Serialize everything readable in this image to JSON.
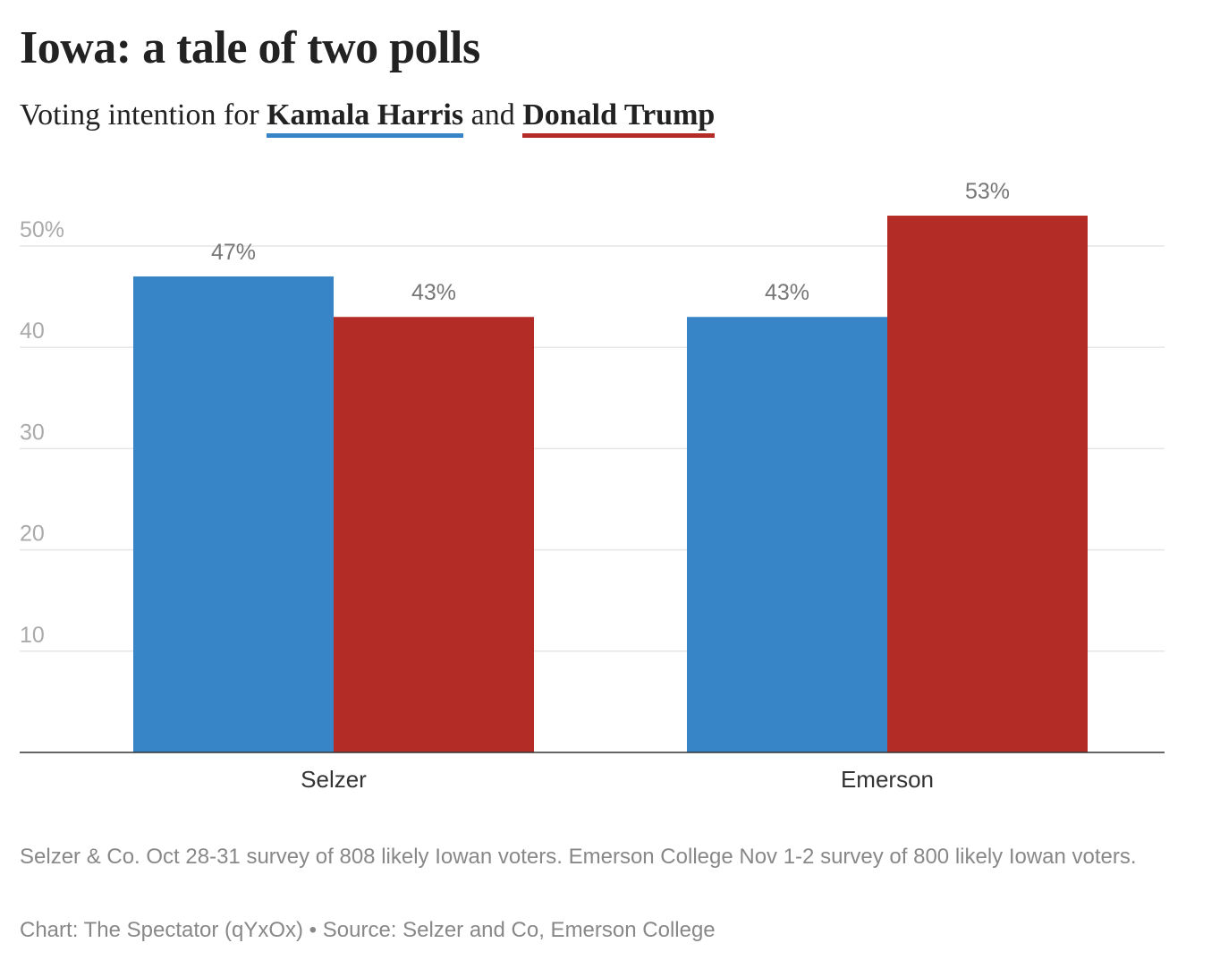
{
  "title": "Iowa: a tale of two polls",
  "subtitle": {
    "prefix": "Voting intention for",
    "series1": "Kamala Harris",
    "joiner": "and",
    "series2": "Donald Trump"
  },
  "chart_data": {
    "type": "bar",
    "title": "Iowa: a tale of two polls",
    "subtitle": "Voting intention for Kamala Harris and Donald Trump",
    "categories": [
      "Selzer",
      "Emerson"
    ],
    "series": [
      {
        "name": "Kamala Harris",
        "color": "#3784c7",
        "values": [
          47,
          43
        ],
        "labels": [
          "47%",
          "43%"
        ]
      },
      {
        "name": "Donald Trump",
        "color": "#b32d26",
        "values": [
          43,
          53
        ],
        "labels": [
          "43%",
          "53%"
        ]
      }
    ],
    "yticks": [
      10,
      20,
      30,
      40,
      50
    ],
    "ytick_labels": [
      "10",
      "20",
      "30",
      "40",
      "50%"
    ],
    "ylim": [
      0,
      55
    ],
    "xlabel": "",
    "ylabel": "",
    "grid": true,
    "legend": "subtitle"
  },
  "footnote": "Selzer & Co. Oct 28-31 survey of 808 likely Iowan voters. Emerson College Nov 1-2 survey of 800 likely Iowan voters.",
  "credit": "Chart: The Spectator (qYxOx) • Source: Selzer and Co, Emerson College"
}
